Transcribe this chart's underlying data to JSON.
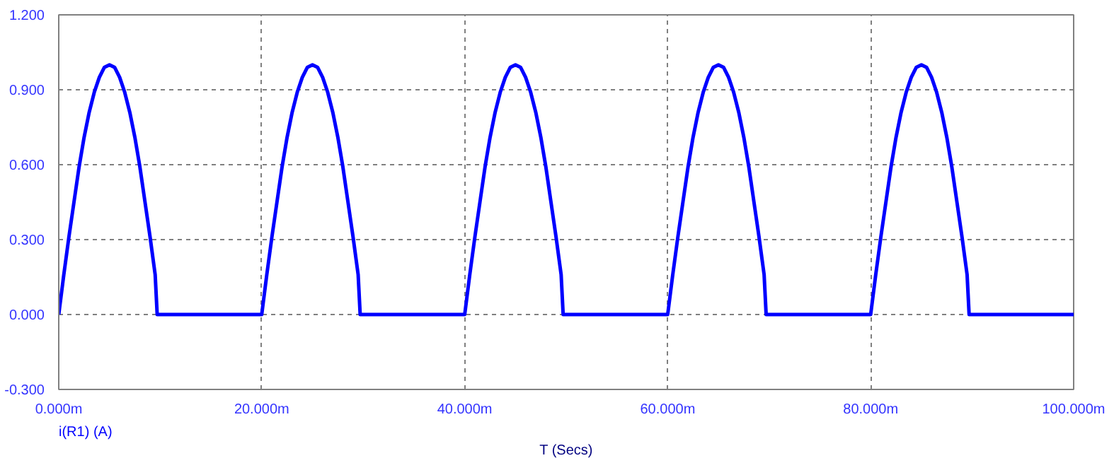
{
  "chart_data": {
    "type": "line",
    "xlabel": "T (Secs)",
    "series": [
      {
        "name": "i(R1) (A)",
        "color": "#0000ff",
        "x": [
          0,
          0.5,
          1,
          1.5,
          2,
          2.5,
          3,
          3.5,
          4,
          4.5,
          5,
          5.5,
          6,
          6.5,
          7,
          7.5,
          8,
          8.5,
          9,
          9.5,
          9.7,
          20,
          20.5,
          21,
          21.5,
          22,
          22.5,
          23,
          23.5,
          24,
          24.5,
          25,
          25.5,
          26,
          26.5,
          27,
          27.5,
          28,
          28.5,
          29,
          29.5,
          29.7,
          40,
          40.5,
          41,
          41.5,
          42,
          42.5,
          43,
          43.5,
          44,
          44.5,
          45,
          45.5,
          46,
          46.5,
          47,
          47.5,
          48,
          48.5,
          49,
          49.5,
          49.7,
          60,
          60.5,
          61,
          61.5,
          62,
          62.5,
          63,
          63.5,
          64,
          64.5,
          65,
          65.5,
          66,
          66.5,
          67,
          67.5,
          68,
          68.5,
          69,
          69.5,
          69.7,
          80,
          80.5,
          81,
          81.5,
          82,
          82.5,
          83,
          83.5,
          84,
          84.5,
          85,
          85.5,
          86,
          86.5,
          87,
          87.5,
          88,
          88.5,
          89,
          89.5,
          89.7,
          100
        ],
        "values": [
          0,
          0.16,
          0.31,
          0.45,
          0.59,
          0.71,
          0.81,
          0.89,
          0.95,
          0.99,
          1.0,
          0.99,
          0.95,
          0.89,
          0.81,
          0.71,
          0.59,
          0.45,
          0.31,
          0.16,
          0,
          0,
          0.16,
          0.31,
          0.45,
          0.59,
          0.71,
          0.81,
          0.89,
          0.95,
          0.99,
          1.0,
          0.99,
          0.95,
          0.89,
          0.81,
          0.71,
          0.59,
          0.45,
          0.31,
          0.16,
          0,
          0,
          0.16,
          0.31,
          0.45,
          0.59,
          0.71,
          0.81,
          0.89,
          0.95,
          0.99,
          1.0,
          0.99,
          0.95,
          0.89,
          0.81,
          0.71,
          0.59,
          0.45,
          0.31,
          0.16,
          0,
          0,
          0.16,
          0.31,
          0.45,
          0.59,
          0.71,
          0.81,
          0.89,
          0.95,
          0.99,
          1.0,
          0.99,
          0.95,
          0.89,
          0.81,
          0.71,
          0.59,
          0.45,
          0.31,
          0.16,
          0,
          0,
          0.16,
          0.31,
          0.45,
          0.59,
          0.71,
          0.81,
          0.89,
          0.95,
          0.99,
          1.0,
          0.99,
          0.95,
          0.89,
          0.81,
          0.71,
          0.59,
          0.45,
          0.31,
          0.16,
          0,
          0
        ]
      }
    ],
    "xlim": [
      0,
      100
    ],
    "xticks": [
      {
        "value": 0,
        "label": "0.000m"
      },
      {
        "value": 20,
        "label": "20.000m"
      },
      {
        "value": 40,
        "label": "40.000m"
      },
      {
        "value": 60,
        "label": "60.000m"
      },
      {
        "value": 80,
        "label": "80.000m"
      },
      {
        "value": 100,
        "label": "100.000m"
      }
    ],
    "ylim": [
      -0.3,
      1.2
    ],
    "yticks": [
      {
        "value": -0.3,
        "label": "-0.300"
      },
      {
        "value": 0,
        "label": "0.000"
      },
      {
        "value": 0.3,
        "label": "0.300"
      },
      {
        "value": 0.6,
        "label": "0.600"
      },
      {
        "value": 0.9,
        "label": "0.900"
      },
      {
        "value": 1.2,
        "label": "1.200"
      }
    ],
    "grid": true,
    "line_style": "solid",
    "marker": "none"
  }
}
